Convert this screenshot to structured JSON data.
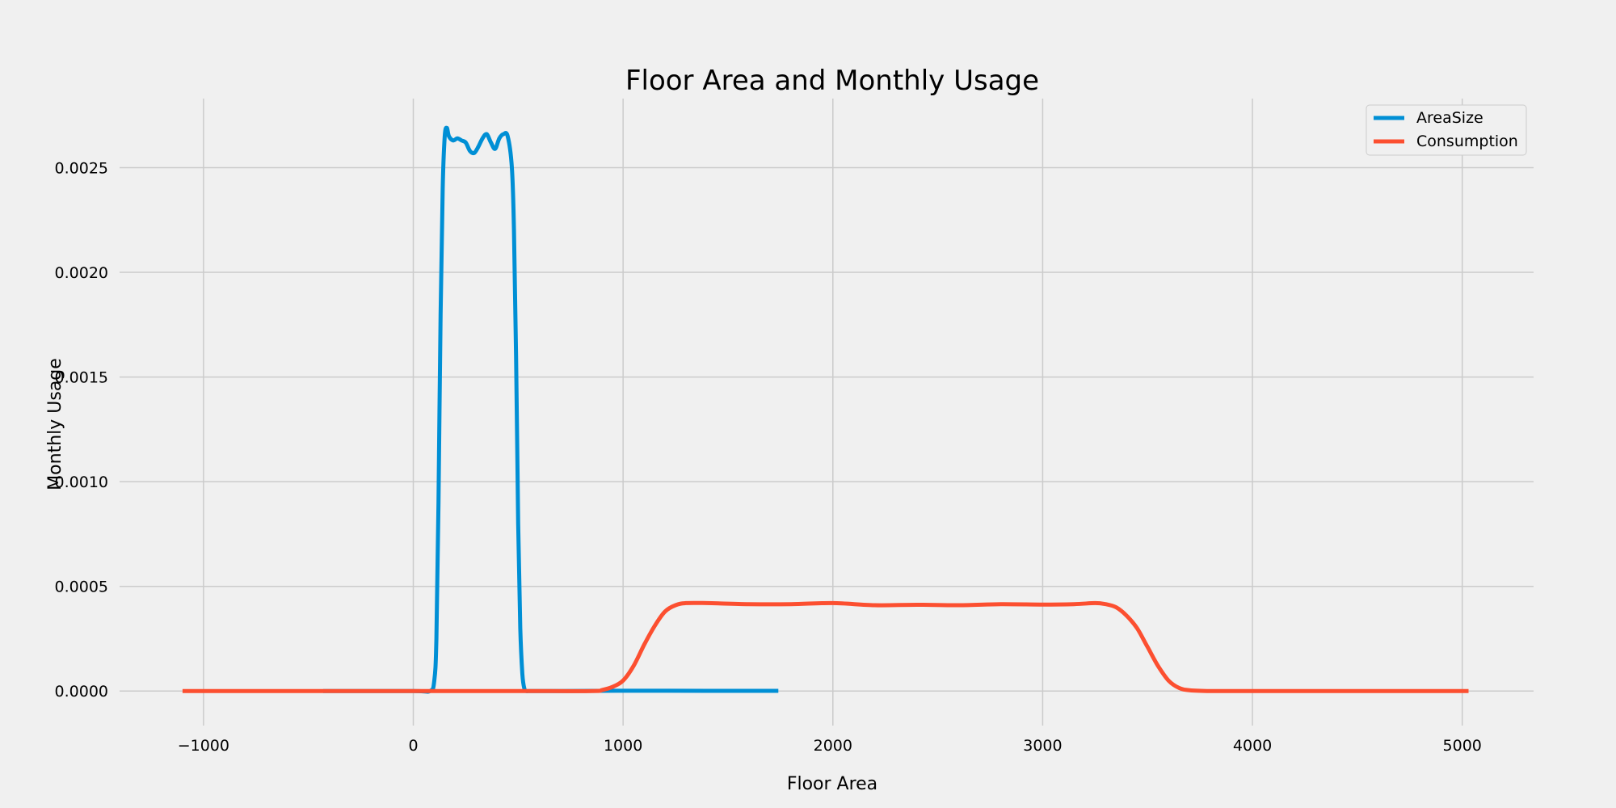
{
  "chart_data": {
    "type": "line",
    "title": "Floor Area and Monthly Usage",
    "xlabel": "Floor Area",
    "ylabel": "Monthly Usage",
    "xlim": [
      -1400,
      5340
    ],
    "ylim": [
      -0.000165,
      0.00283
    ],
    "x_ticks": [
      -1000,
      0,
      1000,
      2000,
      3000,
      4000,
      5000
    ],
    "x_tick_labels": [
      "−1000",
      "0",
      "1000",
      "2000",
      "3000",
      "4000",
      "5000"
    ],
    "y_ticks": [
      0,
      0.0005,
      0.001,
      0.0015,
      0.002,
      0.0025
    ],
    "y_tick_labels": [
      "0.0000",
      "0.0005",
      "0.0010",
      "0.0015",
      "0.0020",
      "0.0025"
    ],
    "grid": true,
    "legend": {
      "placement": "top-right",
      "entries": [
        "AreaSize",
        "Consumption"
      ]
    },
    "series": [
      {
        "name": "AreaSize",
        "color": "#008fd5",
        "x": [
          -430,
          0,
          80,
          100,
          110,
          120,
          130,
          140,
          150,
          160,
          170,
          190,
          210,
          230,
          250,
          270,
          290,
          310,
          330,
          350,
          370,
          390,
          410,
          430,
          450,
          470,
          480,
          490,
          500,
          510,
          520,
          530,
          540,
          560,
          700,
          1000,
          1400,
          1740
        ],
        "y": [
          0,
          0,
          0,
          5e-05,
          0.00025,
          0.0009,
          0.0018,
          0.0024,
          0.00265,
          0.00269,
          0.00265,
          0.00263,
          0.00264,
          0.00263,
          0.00262,
          0.00258,
          0.00257,
          0.0026,
          0.00264,
          0.00266,
          0.00262,
          0.00259,
          0.00264,
          0.00266,
          0.00265,
          0.0025,
          0.0022,
          0.0016,
          0.0008,
          0.0003,
          8e-05,
          1e-05,
          0,
          0,
          0,
          1.5e-06,
          1e-06,
          1e-06
        ]
      },
      {
        "name": "Consumption",
        "color": "#fc4f30",
        "x": [
          -1100,
          0,
          500,
          850,
          900,
          950,
          1000,
          1050,
          1100,
          1150,
          1200,
          1250,
          1300,
          1400,
          1600,
          1800,
          2000,
          2200,
          2400,
          2600,
          2800,
          3000,
          3150,
          3250,
          3300,
          3350,
          3400,
          3450,
          3500,
          3550,
          3600,
          3650,
          3700,
          3800,
          4000,
          5030
        ],
        "y": [
          0,
          0,
          0,
          0,
          5e-06,
          2e-05,
          5e-05,
          0.00012,
          0.00022,
          0.00031,
          0.00038,
          0.00041,
          0.00042,
          0.00042,
          0.000415,
          0.000415,
          0.00042,
          0.00041,
          0.000412,
          0.00041,
          0.000415,
          0.000413,
          0.000415,
          0.00042,
          0.000415,
          0.0004,
          0.00036,
          0.0003,
          0.00021,
          0.00012,
          5e-05,
          1.5e-05,
          4e-06,
          0,
          0,
          0
        ]
      }
    ]
  }
}
